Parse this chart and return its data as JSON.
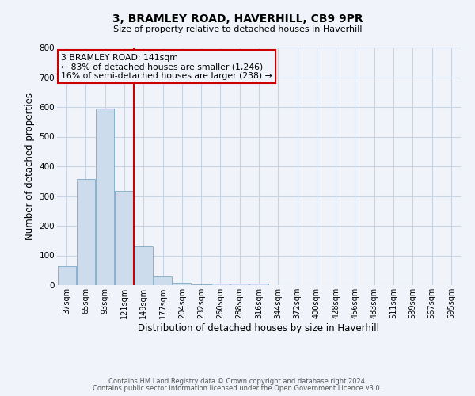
{
  "title": "3, BRAMLEY ROAD, HAVERHILL, CB9 9PR",
  "subtitle": "Size of property relative to detached houses in Haverhill",
  "xlabel": "Distribution of detached houses by size in Haverhill",
  "ylabel": "Number of detached properties",
  "bar_labels": [
    "37sqm",
    "65sqm",
    "93sqm",
    "121sqm",
    "149sqm",
    "177sqm",
    "204sqm",
    "232sqm",
    "260sqm",
    "288sqm",
    "316sqm",
    "344sqm",
    "372sqm",
    "400sqm",
    "428sqm",
    "456sqm",
    "483sqm",
    "511sqm",
    "539sqm",
    "567sqm",
    "595sqm"
  ],
  "bar_values": [
    65,
    357,
    595,
    318,
    130,
    30,
    8,
    2,
    5,
    5,
    5,
    0,
    0,
    0,
    0,
    0,
    0,
    0,
    0,
    0,
    0
  ],
  "bar_color": "#ccdcec",
  "bar_edgecolor": "#7aaac8",
  "vline_color": "#cc0000",
  "annotation_title": "3 BRAMLEY ROAD: 141sqm",
  "annotation_line1": "← 83% of detached houses are smaller (1,246)",
  "annotation_line2": "16% of semi-detached houses are larger (238) →",
  "annotation_box_edgecolor": "#cc0000",
  "ylim": [
    0,
    800
  ],
  "yticks": [
    0,
    100,
    200,
    300,
    400,
    500,
    600,
    700,
    800
  ],
  "footer1": "Contains HM Land Registry data © Crown copyright and database right 2024.",
  "footer2": "Contains public sector information licensed under the Open Government Licence v3.0.",
  "background_color": "#f0f4fa",
  "grid_color": "#c8d4e4"
}
